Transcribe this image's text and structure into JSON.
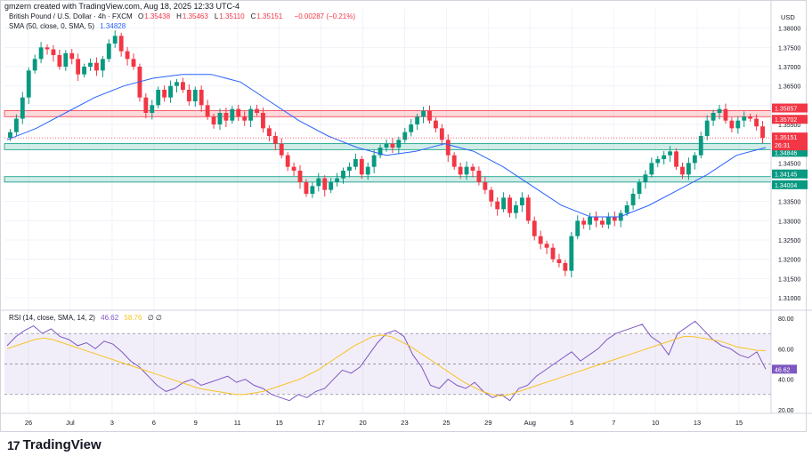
{
  "header": {
    "created_by": "gmzern created with TradingView.com, Aug 18, 2025 12:33 UTC-4"
  },
  "legend": {
    "symbol": "British Pound / U.S. Dollar · 4h · FXCM",
    "ohlc": [
      {
        "k": "O",
        "v": "1.35438"
      },
      {
        "k": "H",
        "v": "1.35463"
      },
      {
        "k": "L",
        "v": "1.35110"
      },
      {
        "k": "C",
        "v": "1.35151"
      }
    ],
    "change": "−0.00287 (−0.21%)",
    "sma_label": "SMA (50, close, 0, SMA, 5)",
    "sma_value": "1.34828",
    "rsi_label": "RSI (14, close, SMA, 14, 2)",
    "rsi_value": "46.62",
    "rsi_ma_value": "58.76",
    "rsi_extra": "∅ ∅"
  },
  "brand": {
    "name": "TradingView",
    "logo": "17"
  },
  "colors": {
    "up": "#089981",
    "down": "#f23645",
    "sma": "#2962ff",
    "rsi": "#7e57c2",
    "rsi_ma": "#f7c325"
  },
  "chart_data": {
    "type": "candlestick",
    "price_axis": {
      "currency": "USD",
      "ylim": [
        1.307,
        1.385
      ],
      "ticks": [
        "1.38000",
        "1.37500",
        "1.37000",
        "1.36500",
        "1.36000",
        "1.35500",
        "1.35000",
        "1.34500",
        "1.34000",
        "1.33500",
        "1.33000",
        "1.32500",
        "1.32000",
        "1.31500",
        "1.31000"
      ],
      "tick_values": [
        1.38,
        1.375,
        1.37,
        1.365,
        1.36,
        1.355,
        1.35,
        1.345,
        1.34,
        1.335,
        1.33,
        1.325,
        1.32,
        1.315,
        1.31
      ]
    },
    "x_labels": [
      "26",
      "Jul",
      "3",
      "6",
      "9",
      "11",
      "15",
      "17",
      "20",
      "23",
      "25",
      "29",
      "Aug",
      "5",
      "7",
      "10",
      "13",
      "15"
    ],
    "zones": [
      {
        "type": "resistance",
        "from": 1.35702,
        "to": 1.35857,
        "labels": [
          "1.35857",
          "1.35702"
        ],
        "color": "#f23645"
      },
      {
        "type": "support",
        "from": 1.34846,
        "to": 1.35001,
        "labels": [
          "1.35001",
          "1.34846"
        ],
        "color": "#089981"
      },
      {
        "type": "support",
        "from": 1.34004,
        "to": 1.34145,
        "labels": [
          "1.34145",
          "1.34004"
        ],
        "color": "#089981"
      }
    ],
    "last_price": {
      "value": 1.35151,
      "label": "1.35151",
      "countdown": "26:31"
    },
    "closes": [
      1.353,
      1.3565,
      1.362,
      1.369,
      1.372,
      1.375,
      1.3745,
      1.373,
      1.37,
      1.3735,
      1.372,
      1.368,
      1.37,
      1.371,
      1.369,
      1.372,
      1.376,
      1.378,
      1.374,
      1.372,
      1.37,
      1.362,
      1.358,
      1.36,
      1.364,
      1.362,
      1.365,
      1.366,
      1.364,
      1.361,
      1.364,
      1.36,
      1.357,
      1.355,
      1.358,
      1.356,
      1.359,
      1.357,
      1.356,
      1.359,
      1.358,
      1.354,
      1.352,
      1.35,
      1.347,
      1.344,
      1.343,
      1.34,
      1.337,
      1.339,
      1.341,
      1.338,
      1.34,
      1.341,
      1.343,
      1.344,
      1.346,
      1.342,
      1.344,
      1.347,
      1.349,
      1.35,
      1.349,
      1.351,
      1.353,
      1.355,
      1.357,
      1.3585,
      1.356,
      1.354,
      1.351,
      1.347,
      1.344,
      1.342,
      1.344,
      1.343,
      1.34,
      1.338,
      1.335,
      1.333,
      1.336,
      1.332,
      1.334,
      1.336,
      1.33,
      1.326,
      1.324,
      1.323,
      1.32,
      1.319,
      1.317,
      1.326,
      1.33,
      1.329,
      1.331,
      1.33,
      1.329,
      1.331,
      1.33,
      1.332,
      1.334,
      1.337,
      1.34,
      1.342,
      1.345,
      1.346,
      1.347,
      1.348,
      1.344,
      1.342,
      1.345,
      1.347,
      1.352,
      1.356,
      1.358,
      1.359,
      1.356,
      1.354,
      1.356,
      1.357,
      1.3565,
      1.3545,
      1.3515
    ],
    "sma50": [
      1.351,
      1.354,
      1.358,
      1.362,
      1.365,
      1.367,
      1.368,
      1.368,
      1.366,
      1.361,
      1.356,
      1.352,
      1.349,
      1.347,
      1.348,
      1.35,
      1.348,
      1.344,
      1.339,
      1.334,
      1.331,
      1.331,
      1.334,
      1.338,
      1.342,
      1.347,
      1.349
    ],
    "rsi_axis": {
      "ylim": [
        20,
        80
      ],
      "ticks": [
        "80.00",
        "60.00",
        "40.00",
        "20.00"
      ],
      "tick_values": [
        80,
        60,
        40,
        20
      ],
      "bands": [
        30,
        70
      ],
      "mid": 50
    },
    "rsi": [
      62,
      68,
      72,
      75,
      70,
      73,
      68,
      66,
      62,
      64,
      60,
      65,
      63,
      58,
      52,
      48,
      42,
      36,
      32,
      34,
      38,
      40,
      36,
      38,
      40,
      42,
      38,
      40,
      36,
      34,
      30,
      28,
      26,
      30,
      28,
      32,
      34,
      40,
      46,
      44,
      48,
      56,
      64,
      70,
      72,
      68,
      56,
      48,
      36,
      34,
      40,
      36,
      34,
      38,
      32,
      28,
      30,
      26,
      34,
      36,
      42,
      46,
      50,
      54,
      58,
      52,
      56,
      60,
      66,
      70,
      72,
      74,
      76,
      68,
      64,
      56,
      70,
      74,
      78,
      72,
      66,
      62,
      60,
      56,
      54,
      58,
      46.62
    ],
    "rsi_ma": [
      60,
      62,
      64,
      66,
      67,
      66,
      64,
      62,
      60,
      58,
      56,
      54,
      52,
      50,
      48,
      46,
      44,
      42,
      40,
      38,
      36,
      34,
      33,
      32,
      31,
      30,
      30,
      31,
      32,
      34,
      36,
      38,
      40,
      43,
      46,
      50,
      54,
      58,
      62,
      65,
      68,
      69,
      68,
      65,
      62,
      58,
      54,
      50,
      46,
      42,
      38,
      35,
      32,
      30,
      29,
      30,
      32,
      34,
      36,
      38,
      40,
      42,
      44,
      46,
      48,
      50,
      52,
      54,
      56,
      58,
      60,
      62,
      64,
      66,
      68,
      68,
      67,
      66,
      65,
      63,
      61,
      60,
      59,
      58.76
    ]
  }
}
